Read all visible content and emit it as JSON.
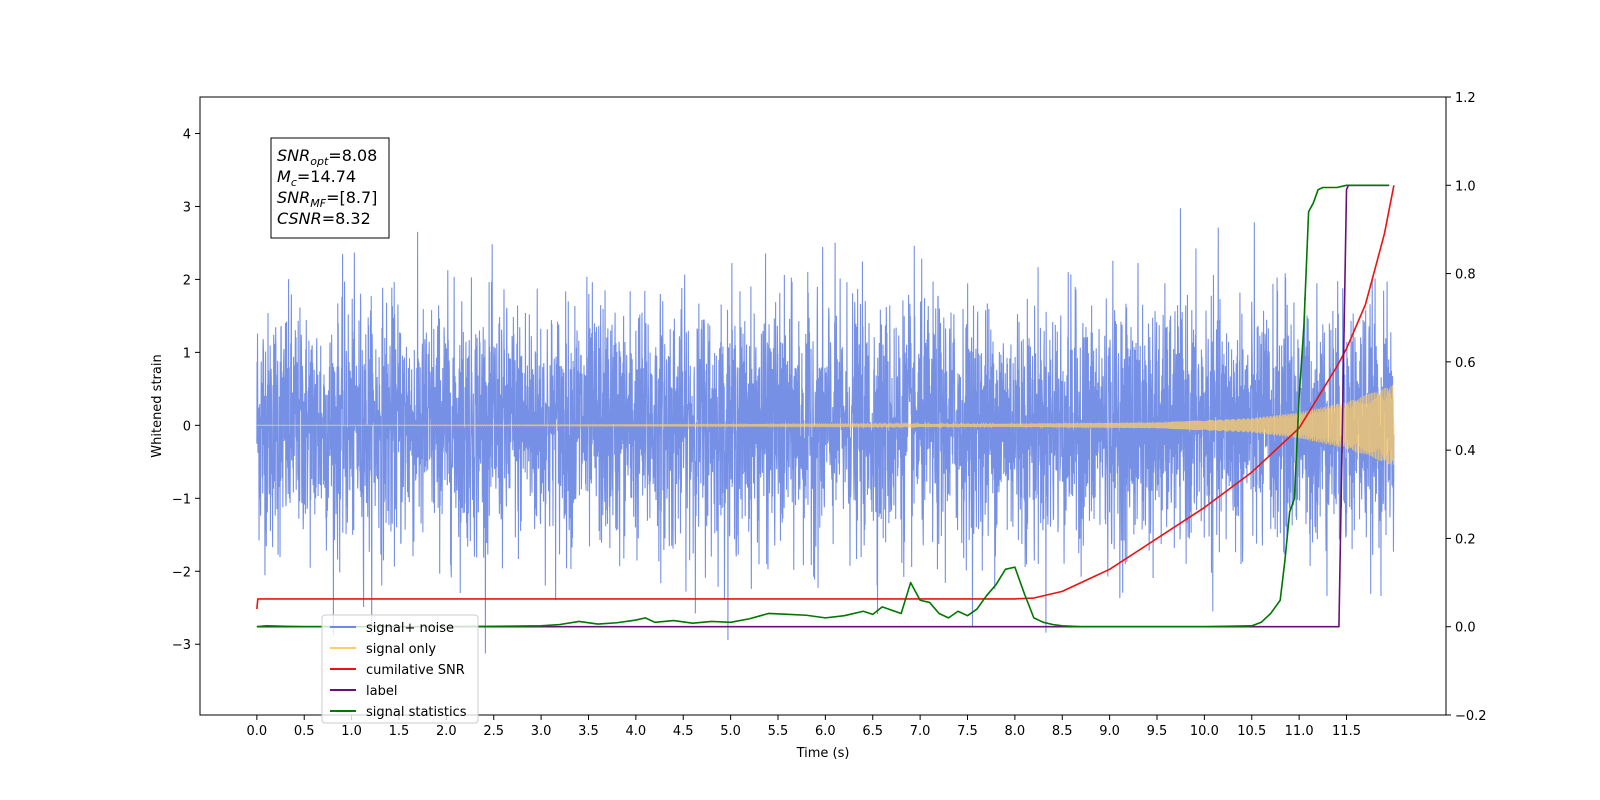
{
  "chart_data": {
    "type": "line",
    "xlabel": "Time (s)",
    "ylabel_left": "Whitened strain",
    "ylabel_right": "",
    "xlim": [
      -0.6,
      12.55
    ],
    "ylim_left": [
      -3.97,
      4.5
    ],
    "ylim_right": [
      -0.2,
      1.2
    ],
    "x_ticks": [
      0.0,
      0.5,
      1.0,
      1.5,
      2.0,
      2.5,
      3.0,
      3.5,
      4.0,
      4.5,
      5.0,
      5.5,
      6.0,
      6.5,
      7.0,
      7.5,
      8.0,
      8.5,
      9.0,
      9.5,
      10.0,
      10.5,
      11.0,
      11.5
    ],
    "x_tick_labels": [
      "0.0",
      "0.5",
      "1.0",
      "1.5",
      "2.0",
      "2.5",
      "3.0",
      "3.5",
      "4.0",
      "4.5",
      "5.0",
      "5.5",
      "6.0",
      "6.5",
      "7.0",
      "7.5",
      "8.0",
      "8.5",
      "9.0",
      "9.5",
      "10.0",
      "10.5",
      "11.0",
      "11.5"
    ],
    "y_left_ticks": [
      -3,
      -2,
      -1,
      0,
      1,
      2,
      3,
      4
    ],
    "y_left_tick_labels": [
      "−3",
      "−2",
      "−1",
      "0",
      "1",
      "2",
      "3",
      "4"
    ],
    "y_right_ticks": [
      -0.2,
      0.0,
      0.2,
      0.4,
      0.6,
      0.8,
      1.0,
      1.2
    ],
    "y_right_tick_labels": [
      "−0.2",
      "0.0",
      "0.2",
      "0.4",
      "0.6",
      "0.8",
      "1.0",
      "1.2"
    ],
    "grid": false,
    "legend_position": "lower-left",
    "annotation": {
      "lines": [
        {
          "main": "SNR",
          "sub": "opt",
          "value": "=8.08"
        },
        {
          "main": "M",
          "sub": "c",
          "value": "=14.74"
        },
        {
          "main": "SNR",
          "sub": "MF",
          "value": "=[8.7]"
        },
        {
          "main": "CSNR",
          "sub": "",
          "value": "=8.32"
        }
      ]
    },
    "series": [
      {
        "name": "signal+ noise",
        "axis": "left",
        "color": "#6f8ae4",
        "style": "noise",
        "x_range": [
          0.0,
          12.0
        ],
        "typical_band": [
          -1.7,
          1.7
        ],
        "extremes_max": 4.1,
        "extremes_min": -3.55
      },
      {
        "name": "signal only",
        "axis": "left",
        "color": "#ffcc66",
        "style": "chirp",
        "x_range": [
          0.0,
          12.0
        ],
        "amplitude_points": [
          [
            0.0,
            0.0
          ],
          [
            8.0,
            0.02
          ],
          [
            9.5,
            0.04
          ],
          [
            10.5,
            0.1
          ],
          [
            11.0,
            0.18
          ],
          [
            11.5,
            0.32
          ],
          [
            12.0,
            0.56
          ]
        ]
      },
      {
        "name": "cumilative SNR",
        "axis": "right",
        "color": "#ee1111",
        "x": [
          0.0,
          0.01,
          8.0,
          8.2,
          8.5,
          8.8,
          9.0,
          9.5,
          10.0,
          10.5,
          10.8,
          11.0,
          11.2,
          11.4,
          11.5,
          11.6,
          11.7,
          11.8,
          11.9,
          12.0
        ],
        "y": [
          0.04,
          0.063,
          0.063,
          0.065,
          0.08,
          0.11,
          0.13,
          0.2,
          0.27,
          0.35,
          0.41,
          0.45,
          0.52,
          0.59,
          0.63,
          0.68,
          0.73,
          0.81,
          0.89,
          1.0
        ]
      },
      {
        "name": "label",
        "axis": "right",
        "color": "#6a0f7a",
        "x": [
          0.0,
          11.42,
          11.5,
          11.52,
          11.95
        ],
        "y": [
          0.0,
          0.0,
          0.99,
          1.0,
          1.0
        ]
      },
      {
        "name": "signal statistics",
        "axis": "right",
        "color": "#007700",
        "x": [
          0.0,
          0.1,
          0.3,
          0.5,
          1.0,
          1.5,
          2.0,
          2.5,
          3.0,
          3.2,
          3.4,
          3.6,
          3.8,
          4.0,
          4.1,
          4.2,
          4.4,
          4.6,
          4.8,
          5.0,
          5.2,
          5.4,
          5.6,
          5.8,
          6.0,
          6.2,
          6.4,
          6.5,
          6.6,
          6.8,
          6.9,
          7.0,
          7.1,
          7.2,
          7.3,
          7.4,
          7.5,
          7.6,
          7.7,
          7.8,
          7.9,
          8.0,
          8.1,
          8.2,
          8.3,
          8.4,
          8.5,
          8.7,
          9.0,
          10.0,
          10.5,
          10.6,
          10.7,
          10.8,
          10.85,
          10.9,
          10.95,
          11.0,
          11.05,
          11.1,
          11.15,
          11.2,
          11.25,
          11.3,
          11.4,
          11.5,
          11.6,
          11.95
        ],
        "y": [
          0.0,
          0.002,
          0.001,
          0.0,
          0.0,
          0.0,
          0.0,
          0.001,
          0.002,
          0.005,
          0.012,
          0.006,
          0.009,
          0.015,
          0.02,
          0.01,
          0.014,
          0.008,
          0.012,
          0.01,
          0.018,
          0.03,
          0.028,
          0.026,
          0.02,
          0.025,
          0.035,
          0.028,
          0.045,
          0.03,
          0.1,
          0.06,
          0.055,
          0.03,
          0.02,
          0.035,
          0.025,
          0.04,
          0.07,
          0.095,
          0.13,
          0.135,
          0.075,
          0.02,
          0.01,
          0.005,
          0.002,
          0.0,
          0.0,
          0.0,
          0.002,
          0.01,
          0.03,
          0.06,
          0.15,
          0.26,
          0.29,
          0.52,
          0.68,
          0.94,
          0.96,
          0.99,
          0.995,
          0.995,
          0.995,
          1.0,
          1.0,
          1.0
        ]
      }
    ]
  }
}
